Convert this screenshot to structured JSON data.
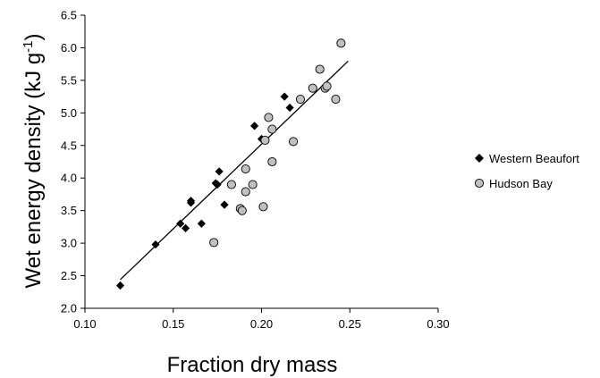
{
  "chart_data": {
    "type": "scatter",
    "title": "",
    "xlabel": "Fraction dry mass",
    "ylabel": "Wet energy density (kJ g",
    "ylabel_unit_exponent": "-1",
    "ylabel_close": ")",
    "xlim": [
      0.1,
      0.3
    ],
    "ylim": [
      2.0,
      6.5
    ],
    "x_ticks": [
      "0.10",
      "0.15",
      "0.20",
      "0.25",
      "0.30"
    ],
    "y_ticks": [
      "2.0",
      "2.5",
      "3.0",
      "3.5",
      "4.0",
      "4.5",
      "5.0",
      "5.5",
      "6.0",
      "6.5"
    ],
    "grid": false,
    "legend_position": "right",
    "series": [
      {
        "name": "Western Beaufort",
        "marker": "diamond",
        "color": "#000000",
        "points": [
          [
            0.12,
            2.35
          ],
          [
            0.14,
            2.98
          ],
          [
            0.154,
            3.3
          ],
          [
            0.157,
            3.23
          ],
          [
            0.16,
            3.62
          ],
          [
            0.16,
            3.65
          ],
          [
            0.166,
            3.3
          ],
          [
            0.174,
            3.92
          ],
          [
            0.175,
            3.9
          ],
          [
            0.176,
            4.1
          ],
          [
            0.179,
            3.59
          ],
          [
            0.196,
            4.8
          ],
          [
            0.2,
            4.6
          ],
          [
            0.213,
            5.25
          ],
          [
            0.216,
            5.08
          ]
        ]
      },
      {
        "name": "Hudson Bay",
        "marker": "circle",
        "color": "#c0c0c0",
        "points": [
          [
            0.173,
            3.01
          ],
          [
            0.183,
            3.9
          ],
          [
            0.188,
            3.53
          ],
          [
            0.189,
            3.5
          ],
          [
            0.191,
            4.14
          ],
          [
            0.191,
            3.79
          ],
          [
            0.195,
            3.9
          ],
          [
            0.201,
            3.56
          ],
          [
            0.202,
            4.58
          ],
          [
            0.204,
            4.93
          ],
          [
            0.206,
            4.75
          ],
          [
            0.206,
            4.25
          ],
          [
            0.218,
            4.56
          ],
          [
            0.222,
            5.21
          ],
          [
            0.229,
            5.38
          ],
          [
            0.233,
            5.67
          ],
          [
            0.236,
            5.38
          ],
          [
            0.237,
            5.41
          ],
          [
            0.242,
            5.21
          ],
          [
            0.245,
            6.07
          ]
        ]
      }
    ],
    "trendline": {
      "x_start": 0.12,
      "x_end": 0.249,
      "slope": 26.0,
      "intercept": -0.68,
      "color": "#000000"
    }
  }
}
